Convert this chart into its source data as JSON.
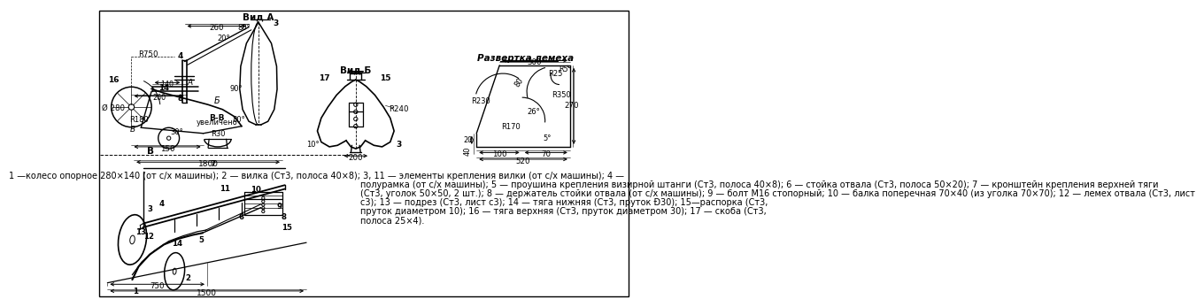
{
  "bg_color": "#ffffff",
  "border_color": "#000000",
  "legend_lines": [
    "1 —колесо опорное 280×140 (от с/х машины); 2 — вилка (Ст3, полоса 40×8); 3, 11 — элементы крепления вилки (от с/х машины); 4 —",
    "полурамка (от с/х машины); 5 — проушина крепления визирной штанги (Ст3, полоса 40×8); 6 — стойка отвала (Ст3, полоса 50×20); 7 — кронштейн крепления верхней тяги",
    "(Ст3, уголок 50×50, 2 шт.); 8 — держатель стойки отвала (от с/х машины); 9 — болт М16 стопорный; 10 — балка поперечная 70×40 (из уголка 70×70); 12 — лемех отвала (Ст3, лист",
    "с3); 13 — подрез (Ст3, лист с3); 14 — тяга нижняя (Ст3, пруток Ð30); 15—распорка (Ст3,",
    "пруток диаметром 10); 16 — тяга верхняя (Ст3, пруток диаметром 30); 17 — скоба (Ст3,",
    "полоса 25×4)."
  ]
}
